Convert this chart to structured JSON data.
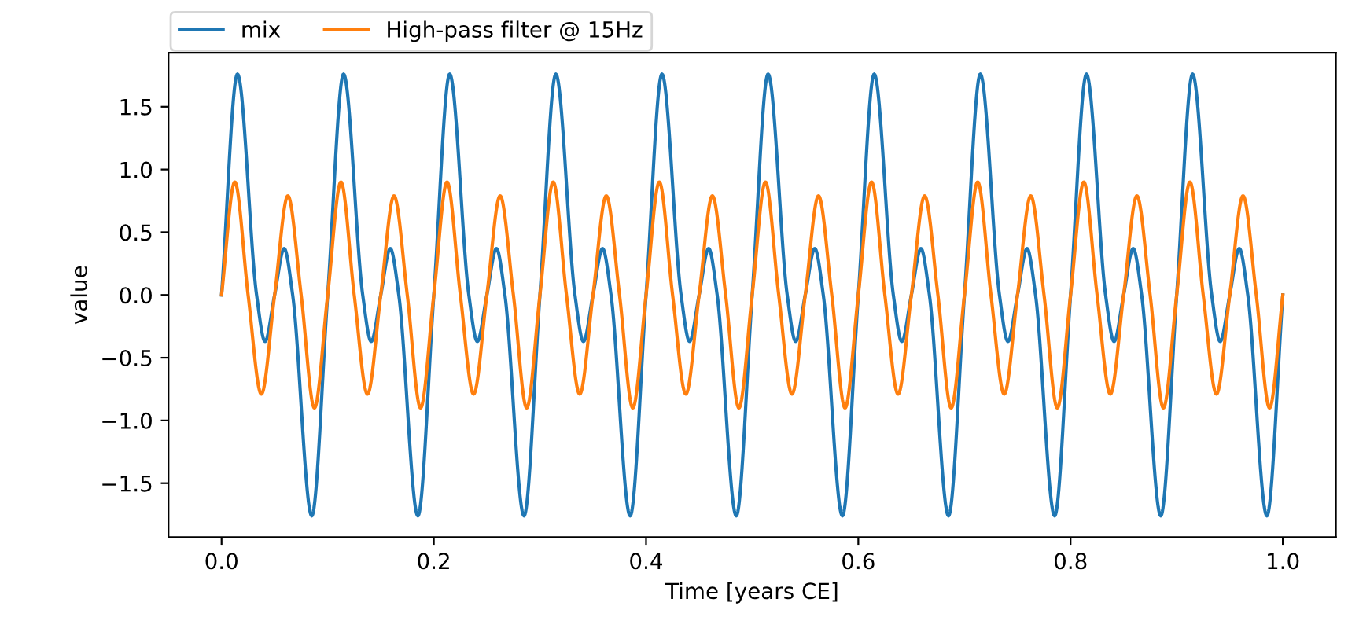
{
  "chart_data": {
    "type": "line",
    "xlabel": "Time [years CE]",
    "ylabel": "value",
    "xlim": [
      -0.05,
      1.05
    ],
    "ylim": [
      -1.93,
      1.93
    ],
    "xticks": [
      {
        "value": 0,
        "label": "0.0"
      },
      {
        "value": 0.2,
        "label": "0.2"
      },
      {
        "value": 0.4,
        "label": "0.4"
      },
      {
        "value": 0.6,
        "label": "0.6"
      },
      {
        "value": 0.8,
        "label": "0.8"
      },
      {
        "value": 1,
        "label": "1.0"
      }
    ],
    "yticks": [
      {
        "value": -1.5,
        "label": "−1.5"
      },
      {
        "value": -1,
        "label": "−1.0"
      },
      {
        "value": -0.5,
        "label": "−0.5"
      },
      {
        "value": 0,
        "label": "0.0"
      },
      {
        "value": 0.5,
        "label": "0.5"
      },
      {
        "value": 1,
        "label": "1.0"
      },
      {
        "value": 1.5,
        "label": "1.5"
      }
    ],
    "legend": "top left",
    "grid": false,
    "marker": "none",
    "line_style": "solid",
    "series": [
      {
        "name": "mix",
        "color": "#1f77b4",
        "x": [
          0,
          0.015,
          0.033,
          0.041,
          0.05,
          0.059,
          0.067,
          0.085,
          0.1,
          0.115,
          0.133,
          0.141,
          0.15,
          0.159,
          0.167,
          0.185,
          0.2,
          0.215,
          0.233,
          0.241,
          0.25,
          0.259,
          0.267,
          0.285,
          0.3,
          0.315,
          0.333,
          0.341,
          0.35,
          0.359,
          0.367,
          0.385,
          0.4,
          0.415,
          0.433,
          0.441,
          0.45,
          0.459,
          0.467,
          0.485,
          0.5,
          0.515,
          0.533,
          0.541,
          0.55,
          0.559,
          0.567,
          0.585,
          0.6,
          0.615,
          0.633,
          0.641,
          0.65,
          0.659,
          0.667,
          0.685,
          0.7,
          0.715,
          0.733,
          0.741,
          0.75,
          0.759,
          0.767,
          0.785,
          0.8,
          0.815,
          0.833,
          0.841,
          0.85,
          0.859,
          0.867,
          0.885,
          0.9,
          0.915,
          0.933,
          0.941,
          0.95,
          0.959,
          0.967,
          0.985,
          1.0
        ],
        "values": [
          0,
          1.76,
          0,
          -0.37,
          0,
          0.37,
          0,
          -1.76,
          0,
          1.76,
          0,
          -0.37,
          0,
          0.37,
          0,
          -1.76,
          0,
          1.76,
          0,
          -0.37,
          0,
          0.37,
          0,
          -1.76,
          0,
          1.76,
          0,
          -0.37,
          0,
          0.37,
          0,
          -1.76,
          0,
          1.76,
          0,
          -0.37,
          0,
          0.37,
          0,
          -1.76,
          0,
          1.76,
          0,
          -0.37,
          0,
          0.37,
          0,
          -1.76,
          0,
          1.76,
          0,
          -0.37,
          0,
          0.37,
          0,
          -1.76,
          0,
          1.76,
          0,
          -0.37,
          0,
          0.37,
          0,
          -1.76,
          0,
          1.76,
          0,
          -0.37,
          0,
          0.37,
          0,
          -1.76,
          0,
          1.76,
          0,
          -0.37,
          0,
          0.37,
          0,
          -1.76,
          0
        ]
      },
      {
        "name": "High-pass filter @ 15Hz",
        "color": "#ff7f0e",
        "x": [
          0,
          0.0125,
          0.025,
          0.0375,
          0.05,
          0.0625,
          0.075,
          0.0875,
          0.1,
          0.1125,
          0.125,
          0.1375,
          0.15,
          0.1625,
          0.175,
          0.1875,
          0.2,
          0.2125,
          0.225,
          0.2375,
          0.25,
          0.2625,
          0.275,
          0.2875,
          0.3,
          0.3125,
          0.325,
          0.3375,
          0.35,
          0.3625,
          0.375,
          0.3875,
          0.4,
          0.4125,
          0.425,
          0.4375,
          0.45,
          0.4625,
          0.475,
          0.4875,
          0.5,
          0.5125,
          0.525,
          0.5375,
          0.55,
          0.5625,
          0.575,
          0.5875,
          0.6,
          0.6125,
          0.625,
          0.6375,
          0.65,
          0.6625,
          0.675,
          0.6875,
          0.7,
          0.7125,
          0.725,
          0.7375,
          0.75,
          0.7625,
          0.775,
          0.7875,
          0.8,
          0.8125,
          0.825,
          0.8375,
          0.85,
          0.8625,
          0.875,
          0.8875,
          0.9,
          0.9125,
          0.925,
          0.9375,
          0.95,
          0.9625,
          0.975,
          0.9875,
          1.0
        ],
        "values": [
          0,
          0.9,
          0,
          -0.79,
          0,
          0.79,
          0,
          -0.9,
          0,
          0.9,
          0,
          -0.79,
          0,
          0.79,
          0,
          -0.9,
          0,
          0.9,
          0,
          -0.79,
          0,
          0.79,
          0,
          -0.9,
          0,
          0.9,
          0,
          -0.79,
          0,
          0.79,
          0,
          -0.9,
          0,
          0.9,
          0,
          -0.79,
          0,
          0.79,
          0,
          -0.9,
          0,
          0.9,
          0,
          -0.79,
          0,
          0.79,
          0,
          -0.9,
          0,
          0.9,
          0,
          -0.79,
          0,
          0.79,
          0,
          -0.9,
          0,
          0.9,
          0,
          -0.79,
          0,
          0.79,
          0,
          -0.9,
          0,
          0.9,
          0,
          -0.79,
          0,
          0.79,
          0,
          -0.9,
          0,
          0.9,
          0,
          -0.79,
          0,
          0.79,
          0,
          -0.9,
          0
        ]
      }
    ]
  }
}
